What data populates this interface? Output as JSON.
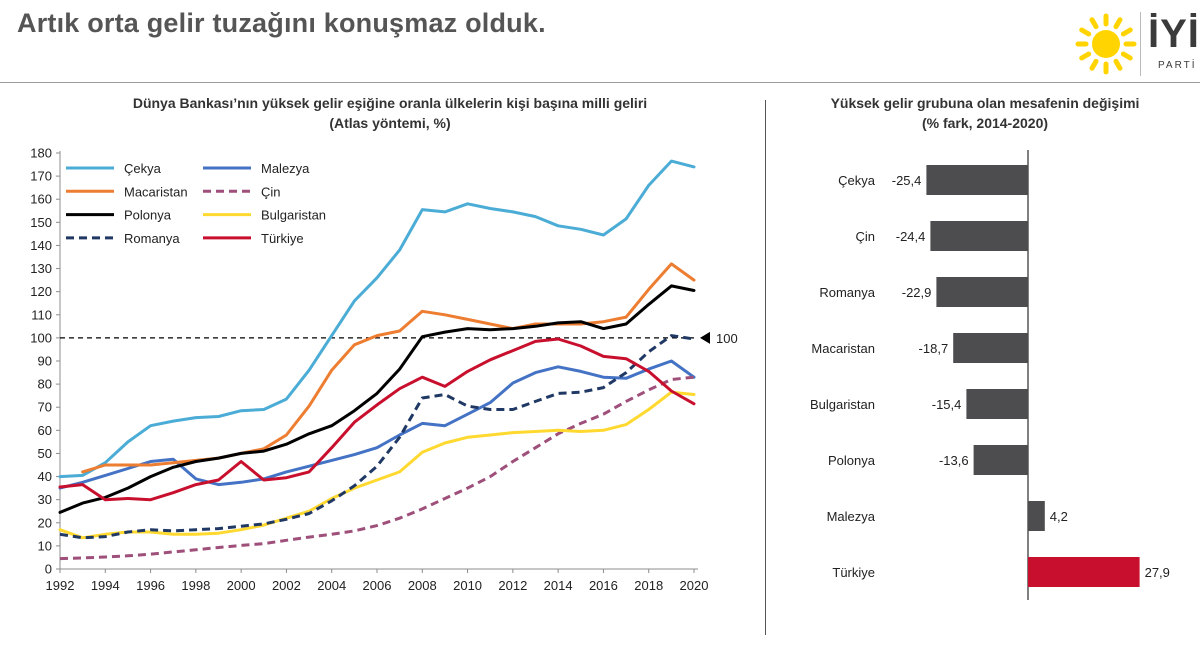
{
  "page": {
    "title": "Artık orta gelir tuzağını konuşmaz olduk.",
    "logo_text": "İYİ",
    "logo_sub": "PARTİ"
  },
  "colors": {
    "czech": "#4bacd6",
    "malaysia": "#4472c4",
    "hungary": "#ed7d31",
    "china": "#9e4f7a",
    "poland": "#000000",
    "bulgaria": "#ffd92f",
    "romania": "#1f3864",
    "turkey": "#c8102e",
    "bar_gray": "#4d4d4f",
    "bar_highlight": "#c8102e",
    "sun": "#ffd400"
  },
  "chart_data": [
    {
      "type": "line",
      "title": "Dünya Bankası’nın yüksek gelir eşiğine oranla ülkelerin kişi başına milli geliri",
      "subtitle": "(Atlas yöntemi, %)",
      "xlabel": "",
      "ylabel": "",
      "x": [
        1992,
        1993,
        1994,
        1995,
        1996,
        1997,
        1998,
        1999,
        2000,
        2001,
        2002,
        2003,
        2004,
        2005,
        2006,
        2007,
        2008,
        2009,
        2010,
        2011,
        2012,
        2013,
        2014,
        2015,
        2016,
        2017,
        2018,
        2019,
        2020
      ],
      "x_ticks": [
        1992,
        1994,
        1996,
        1998,
        2000,
        2002,
        2004,
        2006,
        2008,
        2010,
        2012,
        2014,
        2016,
        2018,
        2020
      ],
      "ylim": [
        0,
        180
      ],
      "y_ticks": [
        0,
        10,
        20,
        30,
        40,
        50,
        60,
        70,
        80,
        90,
        100,
        110,
        120,
        130,
        140,
        150,
        160,
        170,
        180
      ],
      "grid": false,
      "reference_line": {
        "y": 100,
        "label": "100",
        "style": "dashed"
      },
      "legend": {
        "placement": "top-left",
        "columns": 2
      },
      "series": [
        {
          "name": "Çekya",
          "key": "czech",
          "dash": "solid",
          "values": [
            40,
            40.5,
            46,
            55,
            62,
            64,
            65.5,
            66,
            68.5,
            69,
            73.5,
            86,
            101,
            116,
            126,
            138,
            155.5,
            154.5,
            158,
            156,
            154.5,
            152.5,
            148.5,
            147,
            144.5,
            151.5,
            166,
            176.5,
            174
          ]
        },
        {
          "name": "Malezya",
          "key": "malaysia",
          "dash": "solid",
          "values": [
            35,
            37.5,
            40.5,
            43.5,
            46.5,
            47.5,
            39,
            36.5,
            37.5,
            39,
            42,
            44.5,
            47,
            49.5,
            52.5,
            58,
            63,
            62,
            67,
            72,
            80.5,
            85,
            87.5,
            85.5,
            83,
            82.5,
            86.5,
            90,
            83
          ]
        },
        {
          "name": "Macaristan",
          "key": "hungary",
          "dash": "solid",
          "start_index": 1,
          "values": [
            null,
            42,
            45,
            45,
            45,
            46,
            47,
            48,
            50,
            52,
            58,
            70.5,
            86,
            97,
            101,
            103,
            111.5,
            110,
            108,
            106,
            104,
            106,
            106,
            106,
            107,
            109,
            121,
            132,
            125
          ]
        },
        {
          "name": "Çin",
          "key": "china",
          "dash": "dashed",
          "values": [
            4.5,
            4.8,
            5.2,
            5.7,
            6.4,
            7.4,
            8.3,
            9.3,
            10.2,
            11,
            12.4,
            13.8,
            15,
            16.5,
            18.8,
            22,
            26,
            30.5,
            35,
            40,
            46.5,
            52.5,
            58.5,
            63,
            67,
            72.5,
            77.5,
            82,
            83
          ]
        },
        {
          "name": "Polonya",
          "key": "poland",
          "dash": "solid",
          "values": [
            24.5,
            28.5,
            31,
            35,
            40,
            44,
            46.5,
            48,
            50,
            51,
            54,
            58.5,
            62,
            68.5,
            76,
            86.5,
            100.5,
            102.5,
            104,
            103.5,
            104,
            105,
            106.5,
            107,
            104,
            106,
            114.5,
            122.5,
            120.5
          ]
        },
        {
          "name": "Bulgaristan",
          "key": "bulgaria",
          "dash": "solid",
          "values": [
            17,
            13.5,
            15,
            16,
            16,
            15,
            15,
            15.5,
            17,
            19,
            22,
            25,
            30.5,
            35,
            38.5,
            42,
            50.5,
            54.5,
            57,
            58,
            59,
            59.5,
            60,
            59.5,
            60,
            62.5,
            69,
            76.5,
            75.5
          ]
        },
        {
          "name": "Romanya",
          "key": "romania",
          "dash": "dashed",
          "values": [
            15,
            13.5,
            14,
            16,
            17,
            16.5,
            17,
            17.5,
            18.5,
            19.5,
            21.5,
            24,
            29.5,
            36,
            44.5,
            57,
            74,
            75.5,
            70.5,
            69,
            69,
            72.5,
            76,
            76.5,
            78.5,
            85,
            94,
            101,
            99.5
          ]
        },
        {
          "name": "Türkiye",
          "key": "turkey",
          "dash": "solid",
          "values": [
            35.5,
            36.5,
            30,
            30.5,
            30,
            33,
            36.5,
            38.5,
            46.5,
            38.5,
            39.5,
            42,
            52.5,
            63.5,
            71,
            78,
            83,
            79,
            85.5,
            90.5,
            94.5,
            98.5,
            99.5,
            96.5,
            92,
            91,
            85.5,
            77,
            71.5
          ]
        }
      ]
    },
    {
      "type": "bar",
      "orientation": "horizontal",
      "title": "Yüksek gelir grubuna olan mesafenin değişimi",
      "subtitle": "(% fark, 2014-2020)",
      "categories": [
        "Çekya",
        "Çin",
        "Romanya",
        "Macaristan",
        "Bulgaristan",
        "Polonya",
        "Malezya",
        "Türkiye"
      ],
      "values": [
        -25.4,
        -24.4,
        -22.9,
        -18.7,
        -15.4,
        -13.6,
        4.2,
        27.9
      ],
      "value_labels": [
        "-25,4",
        "-24,4",
        "-22,9",
        "-18,7",
        "-15,4",
        "-13,6",
        "4,2",
        "27,9"
      ],
      "highlight": "Türkiye",
      "xlim": [
        -30,
        30
      ]
    }
  ]
}
